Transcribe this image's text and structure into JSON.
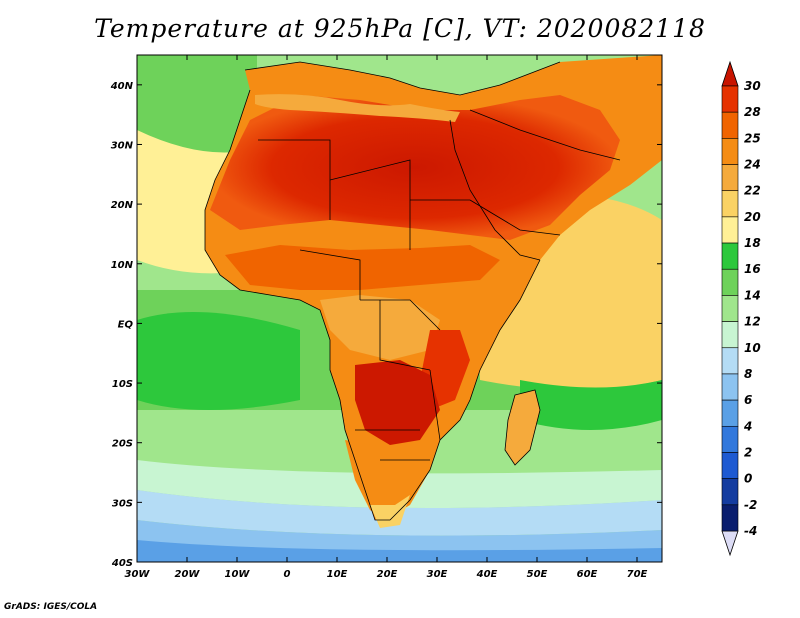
{
  "title": "Temperature at 925hPa [C], VT: 2020082118",
  "credit": "GrADS: IGES/COLA",
  "map": {
    "projection": "latlon",
    "lon_range": [
      -30,
      75
    ],
    "lat_range": [
      -40,
      45
    ],
    "x_ticks": [
      "30W",
      "20W",
      "10W",
      "0",
      "10E",
      "20E",
      "30E",
      "40E",
      "50E",
      "60E",
      "70E"
    ],
    "x_tick_values": [
      -30,
      -20,
      -10,
      0,
      10,
      20,
      30,
      40,
      50,
      60,
      70
    ],
    "y_ticks": [
      "40N",
      "30N",
      "20N",
      "10N",
      "EQ",
      "10S",
      "20S",
      "30S",
      "40S"
    ],
    "y_tick_values": [
      40,
      30,
      20,
      10,
      0,
      -10,
      -20,
      -30,
      -40
    ]
  },
  "colorbar": {
    "levels": [
      "30",
      "28",
      "25",
      "24",
      "22",
      "20",
      "18",
      "16",
      "14",
      "12",
      "10",
      "8",
      "6",
      "4",
      "2",
      "0",
      "-2",
      "-4"
    ],
    "colors": [
      "#c81400",
      "#e63200",
      "#f06400",
      "#f58c14",
      "#f5aa3c",
      "#fad264",
      "#fff096",
      "#2dc83c",
      "#6ed25a",
      "#a0e68c",
      "#c8f5d2",
      "#b4dcf5",
      "#8cc3f0",
      "#5aa0e6",
      "#3278dc",
      "#1e5ad2",
      "#143ca0",
      "#0a1e6e"
    ]
  },
  "icons": {
    "top_arrow": "#c81400",
    "bottom_arrow": "#dcdcf5"
  }
}
